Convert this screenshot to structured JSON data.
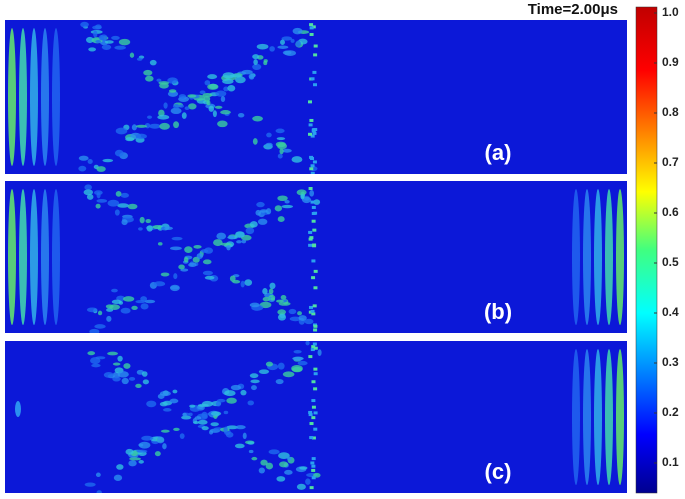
{
  "chart_data": {
    "type": "heatmap",
    "title": "Time=2.00μs",
    "panels": [
      "(a)",
      "(b)",
      "(c)"
    ],
    "colormap": "jet",
    "ylim": [
      0,
      1
    ],
    "yticks": [
      0.1,
      0.2,
      0.3,
      0.4,
      0.5,
      0.6,
      0.7,
      0.8,
      0.9,
      {
        "value": 1,
        "label": "1.0"
      }
    ]
  }
}
